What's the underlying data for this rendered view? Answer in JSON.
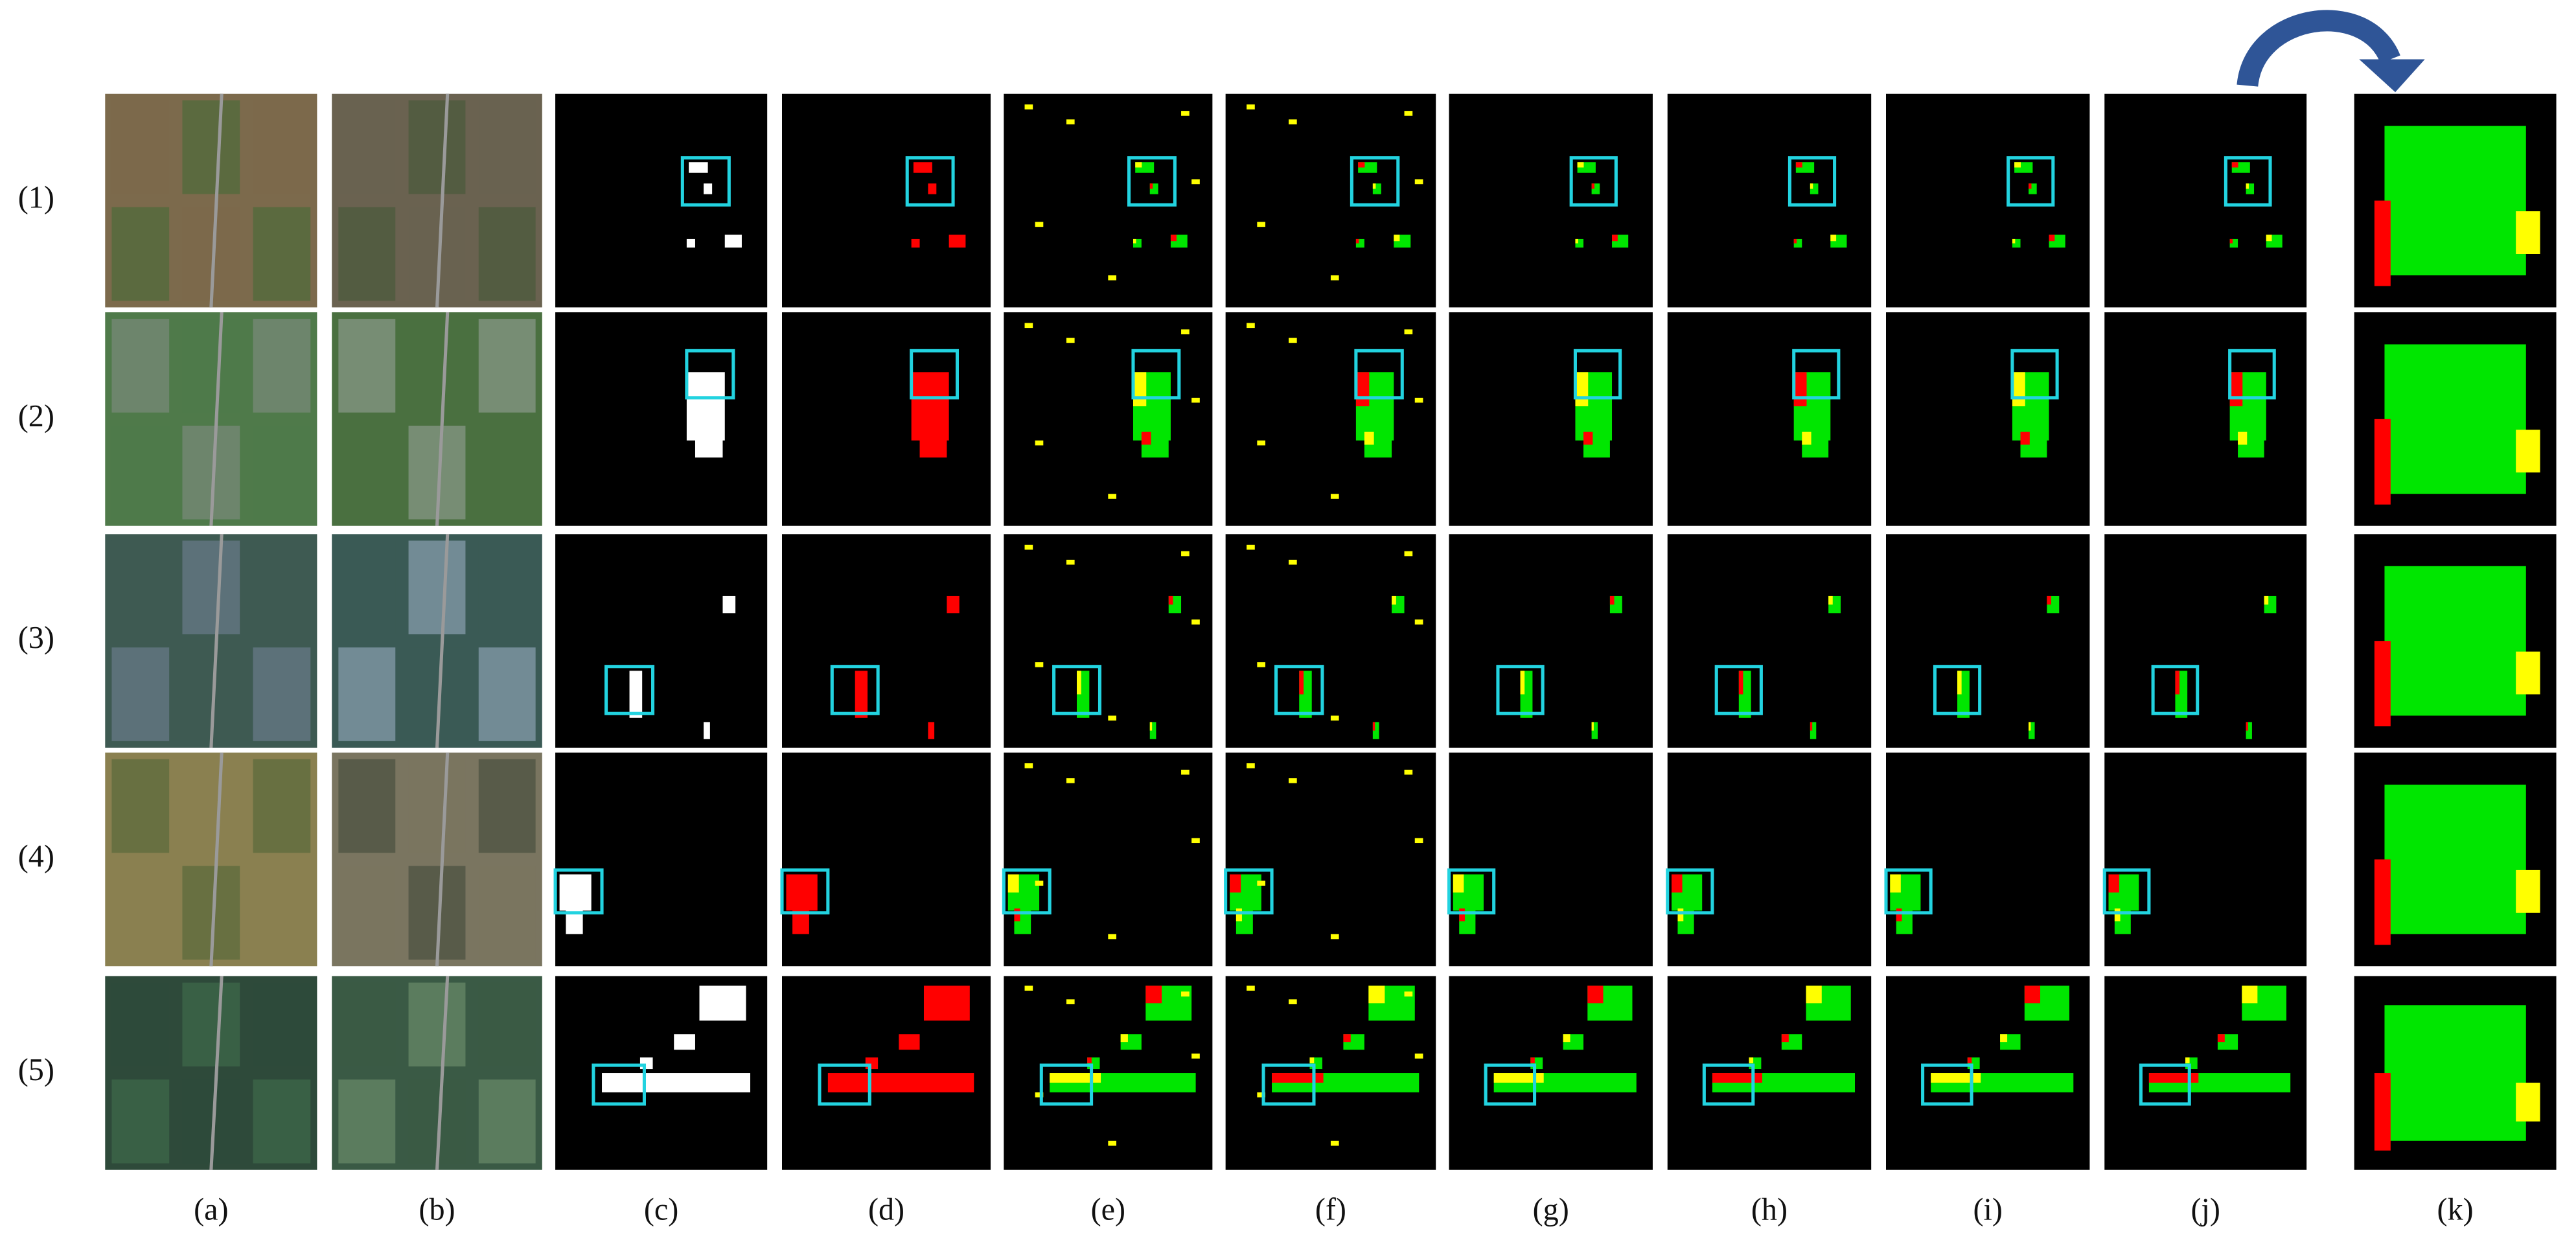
{
  "row_labels": [
    "(1)",
    "(2)",
    "(3)",
    "(4)",
    "(5)"
  ],
  "column_labels": [
    "(a)",
    "(b)",
    "(c)",
    "(d)",
    "(e)",
    "(f)",
    "(g)",
    "(h)",
    "(i)",
    "(j)",
    "(k)"
  ]
}
